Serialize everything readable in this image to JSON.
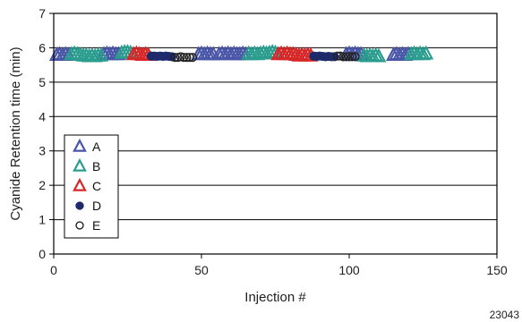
{
  "chart_data": {
    "type": "scatter",
    "ylabel": "Cyanide Retention time (min)",
    "xlabel": "Injection #",
    "xlim": [
      0,
      150
    ],
    "ylim": [
      0,
      7
    ],
    "xticks": [
      0,
      50,
      100,
      150
    ],
    "yticks": [
      0,
      1,
      2,
      3,
      4,
      5,
      6,
      7
    ],
    "grid": "horizontal",
    "legend_position": "lower-left",
    "figure_id": "23043",
    "series": [
      {
        "name": "A",
        "marker": "triangle",
        "color": "#4a56a8",
        "x": [
          1,
          2,
          3,
          4,
          5,
          17,
          18,
          19,
          20,
          21,
          22,
          49,
          50,
          51,
          52,
          53,
          54,
          56,
          57,
          58,
          59,
          60,
          61,
          62,
          63,
          64,
          65,
          99,
          100,
          101,
          102,
          103,
          104,
          115,
          116,
          117,
          118,
          119,
          120
        ],
        "y": [
          5.78,
          5.8,
          5.78,
          5.8,
          5.78,
          5.8,
          5.82,
          5.8,
          5.82,
          5.8,
          5.8,
          5.8,
          5.82,
          5.8,
          5.82,
          5.8,
          5.8,
          5.8,
          5.82,
          5.8,
          5.82,
          5.8,
          5.82,
          5.8,
          5.8,
          5.82,
          5.8,
          5.8,
          5.82,
          5.8,
          5.82,
          5.8,
          5.8,
          5.78,
          5.8,
          5.78,
          5.8,
          5.78,
          5.8
        ]
      },
      {
        "name": "B",
        "marker": "triangle",
        "color": "#2a9d8f",
        "x": [
          6,
          7,
          8,
          9,
          10,
          11,
          12,
          13,
          14,
          15,
          16,
          23,
          24,
          25,
          26,
          66,
          67,
          68,
          69,
          70,
          71,
          72,
          73,
          74,
          75,
          105,
          106,
          107,
          108,
          109,
          110,
          121,
          122,
          123,
          124,
          125,
          126
        ],
        "y": [
          5.8,
          5.82,
          5.8,
          5.78,
          5.76,
          5.76,
          5.74,
          5.76,
          5.74,
          5.76,
          5.76,
          5.84,
          5.86,
          5.86,
          5.84,
          5.82,
          5.8,
          5.82,
          5.8,
          5.82,
          5.84,
          5.82,
          5.84,
          5.86,
          5.84,
          5.76,
          5.74,
          5.76,
          5.74,
          5.76,
          5.74,
          5.8,
          5.82,
          5.8,
          5.82,
          5.8,
          5.82
        ]
      },
      {
        "name": "C",
        "marker": "triangle",
        "color": "#d62828",
        "x": [
          27,
          28,
          29,
          30,
          31,
          32,
          76,
          77,
          78,
          79,
          80,
          81,
          82,
          83,
          84,
          85,
          86,
          87
        ],
        "y": [
          5.8,
          5.82,
          5.8,
          5.78,
          5.8,
          5.78,
          5.8,
          5.82,
          5.8,
          5.82,
          5.8,
          5.8,
          5.78,
          5.76,
          5.78,
          5.76,
          5.78,
          5.76
        ]
      },
      {
        "name": "D",
        "marker": "circle-filled",
        "color": "#1f2a6b",
        "x": [
          33,
          34,
          35,
          36,
          37,
          38,
          39,
          40,
          88,
          89,
          90,
          91,
          92,
          93,
          94,
          95
        ],
        "y": [
          5.76,
          5.76,
          5.75,
          5.76,
          5.75,
          5.76,
          5.75,
          5.74,
          5.76,
          5.75,
          5.76,
          5.75,
          5.74,
          5.75,
          5.74,
          5.74
        ]
      },
      {
        "name": "E",
        "marker": "circle-open",
        "color": "#222222",
        "x": [
          41,
          42,
          43,
          44,
          45,
          46,
          47,
          96,
          97,
          98,
          99,
          100,
          101,
          102
        ],
        "y": [
          5.72,
          5.72,
          5.74,
          5.72,
          5.72,
          5.72,
          5.72,
          5.76,
          5.76,
          5.74,
          5.74,
          5.74,
          5.74,
          5.74
        ]
      }
    ]
  }
}
